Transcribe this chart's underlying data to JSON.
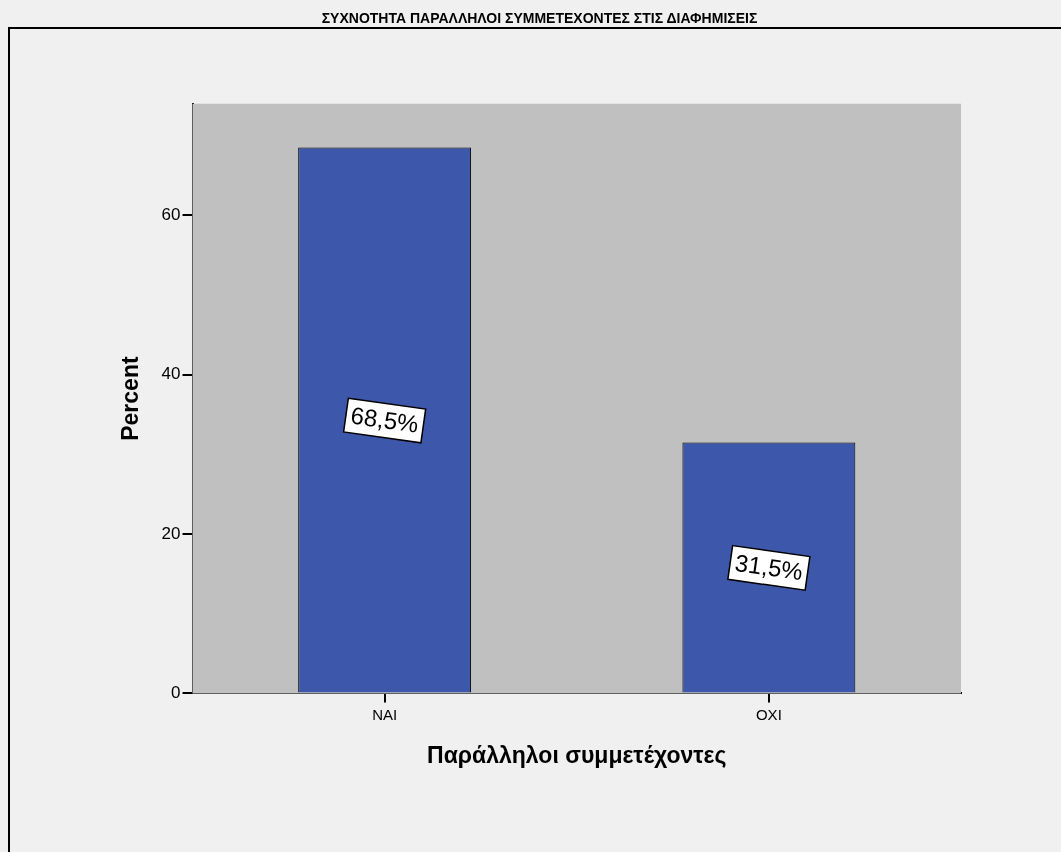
{
  "chart_data": {
    "type": "bar",
    "title": "ΣΥΧΝΟΤΗΤΑ ΠΑΡΑΛΛΗΛΟΙ ΣΥΜΜΕΤΕΧΟΝΤΕΣ ΣΤΙΣ ΔΙΑΦΗΜΙΣΕΙΣ",
    "xlabel": "Παράλληλοι συμμετέχοντες",
    "ylabel": "Percent",
    "categories": [
      "ΝΑΙ",
      "ΟΧΙ"
    ],
    "values": [
      68.5,
      31.5
    ],
    "value_labels": [
      "68,5%",
      "31,5%"
    ],
    "color": "#3d57aa",
    "ylim": [
      0,
      74
    ],
    "yticks": [
      0,
      20,
      40,
      60
    ]
  }
}
